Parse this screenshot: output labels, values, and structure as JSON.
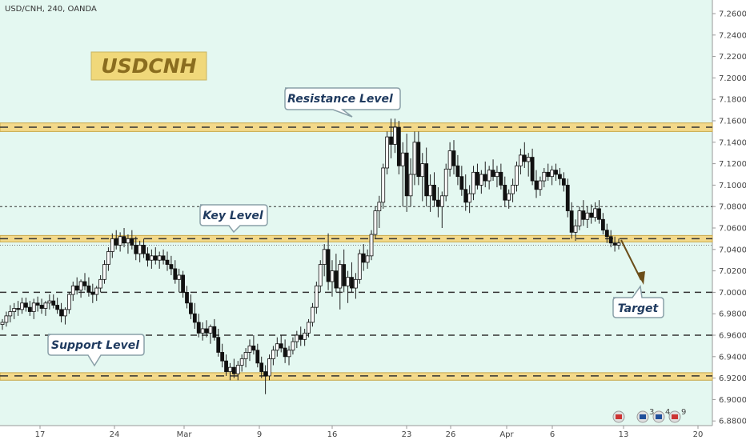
{
  "chart_data": {
    "type": "candlestick",
    "title": "USD/CNH, 240, OANDA",
    "symbol_label": "USDCNH",
    "ylim": [
      6.87,
      7.275
    ],
    "y_ticks": [
      "7.26000",
      "7.24000",
      "7.22000",
      "7.20000",
      "7.18000",
      "7.16000",
      "7.14000",
      "7.12000",
      "7.10000",
      "7.08000",
      "7.06000",
      "7.04000",
      "7.02000",
      "7.00000",
      "6.98000",
      "6.96000",
      "6.94000",
      "6.92000",
      "6.90000",
      "6.88000"
    ],
    "x_ticks": [
      "17",
      "24",
      "Mar",
      "9",
      "16",
      "23",
      "26",
      "Apr",
      "6",
      "13",
      "20"
    ],
    "zones": [
      {
        "name": "Resistance Level",
        "low": 7.15,
        "high": 7.158,
        "mid": 7.154
      },
      {
        "name": "Key Level",
        "low": 7.047,
        "high": 7.053,
        "mid": 7.05
      },
      {
        "name": "Support Level",
        "low": 6.918,
        "high": 6.925,
        "mid": 6.922
      }
    ],
    "levels": [
      7.08,
      7.0,
      6.96
    ],
    "annotations": [
      "Resistance Level",
      "Key Level",
      "Support Level",
      "Target"
    ],
    "candles": [
      [
        6.97,
        6.975,
        6.965,
        6.972
      ],
      [
        6.972,
        6.982,
        6.968,
        6.978
      ],
      [
        6.978,
        6.988,
        6.972,
        6.982
      ],
      [
        6.982,
        6.99,
        6.975,
        6.985
      ],
      [
        6.985,
        6.992,
        6.978,
        6.984
      ],
      [
        6.984,
        6.995,
        6.98,
        6.99
      ],
      [
        6.99,
        6.995,
        6.982,
        6.986
      ],
      [
        6.986,
        6.992,
        6.978,
        6.982
      ],
      [
        6.982,
        6.994,
        6.975,
        6.99
      ],
      [
        6.99,
        6.996,
        6.982,
        6.988
      ],
      [
        6.988,
        6.994,
        6.98,
        6.985
      ],
      [
        6.985,
        6.992,
        6.978,
        6.99
      ],
      [
        6.99,
        6.998,
        6.984,
        6.992
      ],
      [
        6.992,
        6.998,
        6.985,
        6.988
      ],
      [
        6.988,
        6.995,
        6.98,
        6.984
      ],
      [
        6.984,
        6.99,
        6.972,
        6.978
      ],
      [
        6.978,
        6.986,
        6.97,
        6.984
      ],
      [
        6.984,
        7.0,
        6.98,
        6.998
      ],
      [
        6.998,
        7.01,
        6.992,
        7.006
      ],
      [
        7.006,
        7.014,
        6.998,
        7.002
      ],
      [
        7.002,
        7.012,
        6.995,
        7.01
      ],
      [
        7.01,
        7.018,
        7.002,
        7.006
      ],
      [
        7.006,
        7.014,
        6.996,
        7.0
      ],
      [
        7.0,
        7.008,
        6.99,
        6.998
      ],
      [
        6.998,
        7.006,
        6.992,
        7.004
      ],
      [
        7.004,
        7.016,
        7.0,
        7.012
      ],
      [
        7.012,
        7.03,
        7.008,
        7.026
      ],
      [
        7.026,
        7.042,
        7.02,
        7.038
      ],
      [
        7.038,
        7.055,
        7.032,
        7.05
      ],
      [
        7.05,
        7.058,
        7.04,
        7.044
      ],
      [
        7.044,
        7.056,
        7.038,
        7.052
      ],
      [
        7.052,
        7.06,
        7.042,
        7.046
      ],
      [
        7.046,
        7.054,
        7.036,
        7.05
      ],
      [
        7.05,
        7.058,
        7.04,
        7.044
      ],
      [
        7.044,
        7.052,
        7.03,
        7.036
      ],
      [
        7.036,
        7.048,
        7.028,
        7.044
      ],
      [
        7.044,
        7.05,
        7.032,
        7.036
      ],
      [
        7.036,
        7.042,
        7.024,
        7.03
      ],
      [
        7.03,
        7.04,
        7.022,
        7.034
      ],
      [
        7.034,
        7.042,
        7.026,
        7.03
      ],
      [
        7.03,
        7.038,
        7.022,
        7.034
      ],
      [
        7.034,
        7.04,
        7.026,
        7.03
      ],
      [
        7.03,
        7.038,
        7.02,
        7.026
      ],
      [
        7.026,
        7.034,
        7.016,
        7.022
      ],
      [
        7.022,
        7.03,
        7.008,
        7.012
      ],
      [
        7.012,
        7.022,
        7.0,
        7.016
      ],
      [
        7.016,
        7.02,
        6.995,
        7.0
      ],
      [
        7.0,
        7.006,
        6.985,
        6.99
      ],
      [
        6.99,
        6.998,
        6.975,
        6.98
      ],
      [
        6.98,
        6.99,
        6.966,
        6.972
      ],
      [
        6.972,
        6.98,
        6.958,
        6.962
      ],
      [
        6.962,
        6.972,
        6.955,
        6.966
      ],
      [
        6.966,
        6.974,
        6.958,
        6.962
      ],
      [
        6.962,
        6.97,
        6.952,
        6.968
      ],
      [
        6.968,
        6.975,
        6.955,
        6.958
      ],
      [
        6.958,
        6.966,
        6.94,
        6.944
      ],
      [
        6.944,
        6.952,
        6.93,
        6.936
      ],
      [
        6.936,
        6.942,
        6.922,
        6.926
      ],
      [
        6.926,
        6.934,
        6.918,
        6.93
      ],
      [
        6.93,
        6.938,
        6.92,
        6.924
      ],
      [
        6.924,
        6.936,
        6.918,
        6.932
      ],
      [
        6.932,
        6.942,
        6.926,
        6.938
      ],
      [
        6.938,
        6.948,
        6.93,
        6.944
      ],
      [
        6.944,
        6.956,
        6.936,
        6.95
      ],
      [
        6.95,
        6.96,
        6.942,
        6.946
      ],
      [
        6.946,
        6.952,
        6.93,
        6.934
      ],
      [
        6.934,
        6.94,
        6.92,
        6.926
      ],
      [
        6.926,
        6.932,
        6.905,
        6.922
      ],
      [
        6.922,
        6.942,
        6.918,
        6.938
      ],
      [
        6.938,
        6.95,
        6.932,
        6.946
      ],
      [
        6.946,
        6.958,
        6.94,
        6.952
      ],
      [
        6.952,
        6.96,
        6.944,
        6.948
      ],
      [
        6.948,
        6.956,
        6.934,
        6.94
      ],
      [
        6.94,
        6.95,
        6.932,
        6.946
      ],
      [
        6.946,
        6.958,
        6.942,
        6.954
      ],
      [
        6.954,
        6.964,
        6.948,
        6.96
      ],
      [
        6.96,
        6.968,
        6.95,
        6.956
      ],
      [
        6.956,
        6.966,
        6.95,
        6.962
      ],
      [
        6.962,
        6.975,
        6.958,
        6.972
      ],
      [
        6.972,
        6.99,
        6.968,
        6.986
      ],
      [
        6.986,
        7.01,
        6.98,
        7.006
      ],
      [
        7.006,
        7.03,
        7.0,
        7.026
      ],
      [
        7.026,
        7.045,
        7.015,
        7.04
      ],
      [
        7.04,
        7.055,
        7.002,
        7.01
      ],
      [
        7.01,
        7.03,
        6.996,
        7.02
      ],
      [
        7.02,
        7.036,
        7.0,
        7.004
      ],
      [
        7.004,
        7.03,
        6.984,
        7.026
      ],
      [
        7.026,
        7.04,
        7.0,
        7.006
      ],
      [
        7.006,
        7.02,
        6.99,
        7.014
      ],
      [
        7.014,
        7.028,
        7.0,
        7.004
      ],
      [
        7.004,
        7.018,
        6.994,
        7.012
      ],
      [
        7.012,
        7.04,
        7.008,
        7.036
      ],
      [
        7.036,
        7.045,
        7.02,
        7.028
      ],
      [
        7.028,
        7.04,
        7.022,
        7.034
      ],
      [
        7.034,
        7.058,
        7.03,
        7.054
      ],
      [
        7.054,
        7.08,
        7.05,
        7.076
      ],
      [
        7.076,
        7.09,
        7.06,
        7.084
      ],
      [
        7.084,
        7.12,
        7.078,
        7.116
      ],
      [
        7.116,
        7.15,
        7.11,
        7.145
      ],
      [
        7.145,
        7.162,
        7.125,
        7.138
      ],
      [
        7.138,
        7.162,
        7.13,
        7.154
      ],
      [
        7.154,
        7.16,
        7.11,
        7.118
      ],
      [
        7.118,
        7.14,
        7.08,
        7.13
      ],
      [
        7.13,
        7.148,
        7.075,
        7.09
      ],
      [
        7.09,
        7.125,
        7.08,
        7.11
      ],
      [
        7.11,
        7.15,
        7.1,
        7.14
      ],
      [
        7.14,
        7.15,
        7.1,
        7.108
      ],
      [
        7.108,
        7.13,
        7.085,
        7.12
      ],
      [
        7.12,
        7.135,
        7.08,
        7.09
      ],
      [
        7.09,
        7.11,
        7.075,
        7.1
      ],
      [
        7.1,
        7.112,
        7.08,
        7.086
      ],
      [
        7.086,
        7.098,
        7.07,
        7.08
      ],
      [
        7.08,
        7.094,
        7.06,
        7.09
      ],
      [
        7.09,
        7.12,
        7.085,
        7.115
      ],
      [
        7.115,
        7.14,
        7.108,
        7.132
      ],
      [
        7.132,
        7.142,
        7.11,
        7.118
      ],
      [
        7.118,
        7.128,
        7.1,
        7.108
      ],
      [
        7.108,
        7.118,
        7.09,
        7.096
      ],
      [
        7.096,
        7.11,
        7.076,
        7.084
      ],
      [
        7.084,
        7.1,
        7.074,
        7.092
      ],
      [
        7.092,
        7.118,
        7.086,
        7.112
      ],
      [
        7.112,
        7.12,
        7.096,
        7.1
      ],
      [
        7.1,
        7.114,
        7.092,
        7.11
      ],
      [
        7.11,
        7.122,
        7.098,
        7.104
      ],
      [
        7.104,
        7.118,
        7.096,
        7.114
      ],
      [
        7.114,
        7.124,
        7.104,
        7.108
      ],
      [
        7.108,
        7.118,
        7.098,
        7.112
      ],
      [
        7.112,
        7.12,
        7.096,
        7.1
      ],
      [
        7.1,
        7.108,
        7.08,
        7.086
      ],
      [
        7.086,
        7.096,
        7.078,
        7.092
      ],
      [
        7.092,
        7.106,
        7.084,
        7.1
      ],
      [
        7.1,
        7.122,
        7.094,
        7.118
      ],
      [
        7.118,
        7.134,
        7.11,
        7.128
      ],
      [
        7.128,
        7.14,
        7.116,
        7.122
      ],
      [
        7.122,
        7.13,
        7.108,
        7.126
      ],
      [
        7.126,
        7.134,
        7.1,
        7.104
      ],
      [
        7.104,
        7.114,
        7.088,
        7.096
      ],
      [
        7.096,
        7.108,
        7.09,
        7.104
      ],
      [
        7.104,
        7.116,
        7.098,
        7.112
      ],
      [
        7.112,
        7.12,
        7.104,
        7.108
      ],
      [
        7.108,
        7.118,
        7.1,
        7.114
      ],
      [
        7.114,
        7.12,
        7.104,
        7.11
      ],
      [
        7.11,
        7.116,
        7.1,
        7.106
      ],
      [
        7.106,
        7.112,
        7.094,
        7.1
      ],
      [
        7.1,
        7.106,
        7.07,
        7.076
      ],
      [
        7.076,
        7.084,
        7.05,
        7.056
      ],
      [
        7.056,
        7.068,
        7.048,
        7.062
      ],
      [
        7.062,
        7.08,
        7.058,
        7.076
      ],
      [
        7.076,
        7.086,
        7.062,
        7.068
      ],
      [
        7.068,
        7.08,
        7.06,
        7.074
      ],
      [
        7.074,
        7.082,
        7.064,
        7.07
      ],
      [
        7.07,
        7.084,
        7.066,
        7.078
      ],
      [
        7.078,
        7.086,
        7.064,
        7.068
      ],
      [
        7.068,
        7.074,
        7.054,
        7.058
      ],
      [
        7.058,
        7.064,
        7.046,
        7.052
      ],
      [
        7.052,
        7.058,
        7.042,
        7.046
      ],
      [
        7.046,
        7.052,
        7.038,
        7.044
      ],
      [
        7.044,
        7.05,
        7.04,
        7.046
      ]
    ]
  },
  "watermark_badges": [
    "3",
    "4",
    "9"
  ]
}
